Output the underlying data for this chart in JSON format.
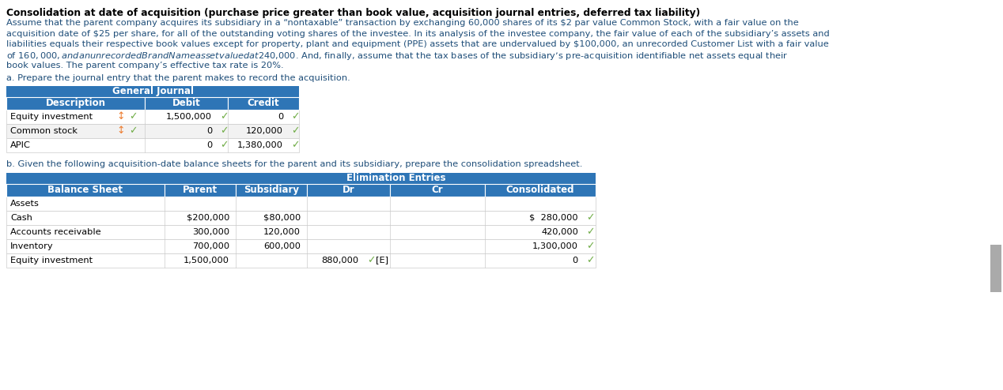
{
  "title": "Consolidation at date of acquisition (purchase price greater than book value, acquisition journal entries, deferred tax liability)",
  "para_lines": [
    "Assume that the parent company acquires its subsidiary in a “nontaxable” transaction by exchanging 60,000 shares of its $2 par value Common Stock, with a fair value on the",
    "acquisition date of $25 per share, for all of the outstanding voting shares of the investee. In its analysis of the investee company, the fair value of each of the subsidiary’s assets and",
    "liabilities equals their respective book values except for property, plant and equipment (PPE) assets that are undervalued by $100,000, an unrecorded Customer List with a fair value",
    "of $160,000, and an unrecorded Brand Name asset valued at $240,000. And, finally, assume that the tax bases of the subsidiary’s pre-acquisition identifiable net assets equal their",
    "book values. The parent company’s effective tax rate is 20%."
  ],
  "section_a_label": "a. Prepare the journal entry that the parent makes to record the acquisition.",
  "section_b_label": "b. Given the following acquisition-date balance sheets for the parent and its subsidiary, prepare the consolidation spreadsheet.",
  "gj_header": "General Journal",
  "gj_cols": [
    "Description",
    "Debit",
    "Credit"
  ],
  "gj_rows": [
    [
      "Equity investment",
      true,
      "1,500,000",
      "0"
    ],
    [
      "Common stock",
      true,
      "0",
      "120,000"
    ],
    [
      "APIC",
      false,
      "0",
      "1,380,000"
    ]
  ],
  "bs_header_top": "Elimination Entries",
  "bs_cols": [
    "Balance Sheet",
    "Parent",
    "Subsidiary",
    "Dr",
    "Cr",
    "Consolidated"
  ],
  "bs_rows": [
    [
      "Assets",
      "",
      "",
      "",
      "",
      ""
    ],
    [
      "Cash",
      "$200,000",
      "$80,000",
      "",
      "",
      "$  280,000"
    ],
    [
      "Accounts receivable",
      "300,000",
      "120,000",
      "",
      "",
      "420,000"
    ],
    [
      "Inventory",
      "700,000",
      "600,000",
      "",
      "",
      "1,300,000"
    ],
    [
      "Equity investment",
      "1,500,000",
      "",
      "880,000",
      "",
      "0"
    ]
  ],
  "bs_row_has_check": [
    false,
    true,
    true,
    true,
    true
  ],
  "bs_dr_has_check_label": [
    false,
    false,
    false,
    false,
    true
  ],
  "header_bg": "#2E75B6",
  "text_blue": "#1F4E79",
  "green": "#70AD47",
  "orange": "#ED7D31",
  "gray_border": "#CCCCCC",
  "light_gray_row": "#F2F2F2"
}
